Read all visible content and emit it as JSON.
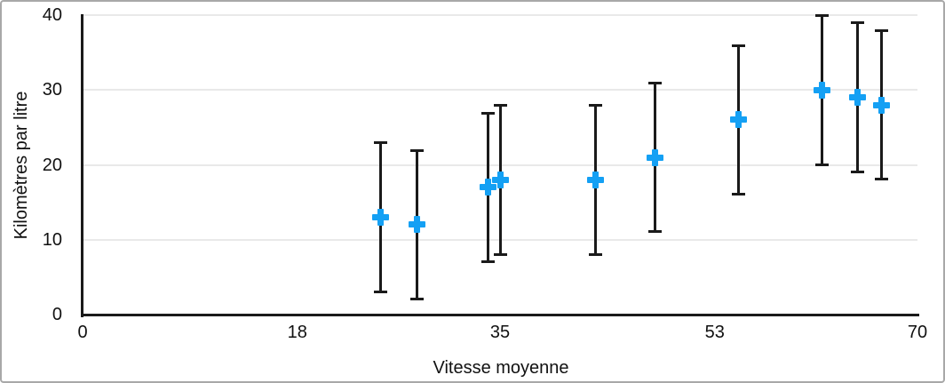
{
  "frame": {
    "background_color": "#ffffff",
    "border_color": "#a8a8a8"
  },
  "colors": {
    "marker_blue": "#14a0f4",
    "axis_black": "#1a1a1a",
    "gridline_gray": "#e9e9e9",
    "text_black": "#111111"
  },
  "chart_data": {
    "type": "scatter",
    "title": "",
    "xlabel": "Vitesse moyenne",
    "ylabel": "Kilomètres par litre",
    "xlim": [
      0,
      70
    ],
    "ylim": [
      0,
      40
    ],
    "x_ticks": [
      0,
      18,
      35,
      53,
      70
    ],
    "y_ticks": [
      0,
      10,
      20,
      30,
      40
    ],
    "grid": "horizontal-only",
    "legend": "none",
    "marker_style": "plus",
    "error_bars": "vertical, symmetric",
    "series": [
      {
        "name": "Kilomètres par litre",
        "points": [
          {
            "x": 25,
            "y": 13,
            "error_plus": 10,
            "error_minus": 10
          },
          {
            "x": 28,
            "y": 12,
            "error_plus": 10,
            "error_minus": 10
          },
          {
            "x": 34,
            "y": 17,
            "error_plus": 10,
            "error_minus": 10
          },
          {
            "x": 35,
            "y": 18,
            "error_plus": 10,
            "error_minus": 10
          },
          {
            "x": 43,
            "y": 18,
            "error_plus": 10,
            "error_minus": 10
          },
          {
            "x": 48,
            "y": 21,
            "error_plus": 10,
            "error_minus": 10
          },
          {
            "x": 55,
            "y": 26,
            "error_plus": 10,
            "error_minus": 10
          },
          {
            "x": 62,
            "y": 30,
            "error_plus": 10,
            "error_minus": 10
          },
          {
            "x": 65,
            "y": 29,
            "error_plus": 10,
            "error_minus": 10
          },
          {
            "x": 67,
            "y": 28,
            "error_plus": 10,
            "error_minus": 10
          }
        ]
      }
    ]
  }
}
